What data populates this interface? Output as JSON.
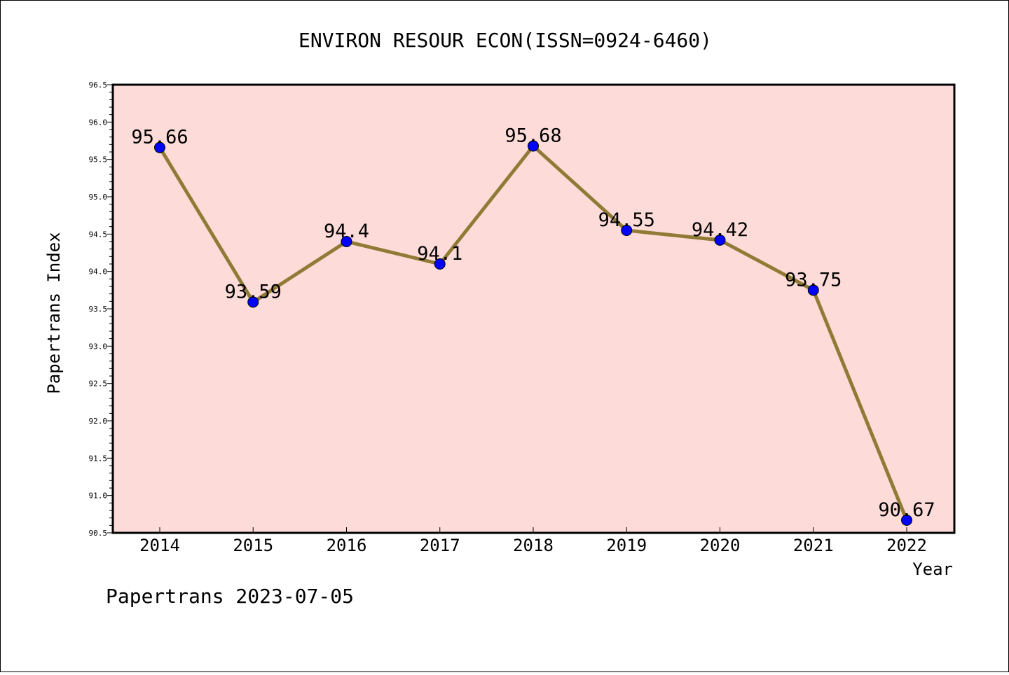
{
  "chart_data": {
    "type": "line",
    "title": "ENVIRON RESOUR ECON(ISSN=0924-6460)",
    "xlabel": "Year",
    "ylabel": "Papertrans Index",
    "categories": [
      "2014",
      "2015",
      "2016",
      "2017",
      "2018",
      "2019",
      "2020",
      "2021",
      "2022"
    ],
    "series": [
      {
        "values": [
          95.66,
          93.59,
          94.4,
          94.1,
          95.68,
          94.55,
          94.42,
          93.75,
          90.67
        ]
      }
    ],
    "data_labels": [
      "95.66",
      "93.59",
      "94.4",
      "94.1",
      "95.68",
      "94.55",
      "94.42",
      "93.75",
      "90.67"
    ],
    "ylim": [
      90.5,
      96.5
    ],
    "y_ticks": [
      "90.5",
      "91.0",
      "91.5",
      "92.0",
      "92.5",
      "93.0",
      "93.5",
      "94.0",
      "94.5",
      "95.0",
      "95.5",
      "96.0",
      "96.5"
    ],
    "grid": false,
    "colors": {
      "plot_background": "#fddbd8",
      "line": "#8f7b35",
      "marker": "#0000ff"
    }
  },
  "footer": {
    "text": "Papertrans 2023-07-05"
  }
}
